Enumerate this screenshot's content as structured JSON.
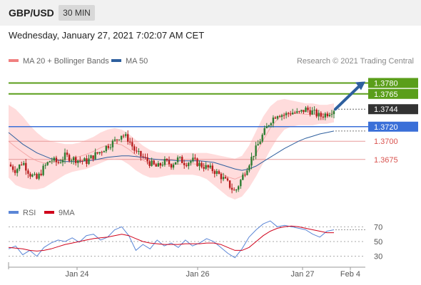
{
  "header": {
    "symbol": "GBP/USD",
    "timeframe": "30 MIN"
  },
  "datetime": "Wednesday, January 27, 2021 7:02:07 AM CET",
  "legend": {
    "bollinger": {
      "label": "MA 20 + Bollinger Bands",
      "color": "#f08080"
    },
    "ma50": {
      "label": "MA 50",
      "color": "#2e5f9e"
    }
  },
  "credit": "Research © 2021 Trading Central",
  "colors": {
    "up": "#2e7d32",
    "down": "#b71c1c",
    "band_fill": "#ffd6d6",
    "target": "#5a9e1a",
    "pivot": "#3a6fd8",
    "support": "#d9534f",
    "last": "#333333",
    "arrow": "#2e5f9e"
  },
  "chart_data": [
    {
      "type": "candlestick",
      "title": "GBP/USD",
      "y_range": [
        1.362,
        1.38
      ],
      "levels": [
        {
          "value": 1.378,
          "label": "1.3780",
          "kind": "target"
        },
        {
          "value": 1.3765,
          "label": "1.3765",
          "kind": "target"
        },
        {
          "value": 1.3744,
          "label": "1.3744",
          "kind": "last"
        },
        {
          "value": 1.372,
          "label": "1.3720",
          "kind": "pivot"
        },
        {
          "value": 1.37,
          "label": "1.3700",
          "kind": "support"
        },
        {
          "value": 1.3675,
          "label": "1.3675",
          "kind": "support"
        }
      ],
      "x_tick_labels": [
        "Jan 24",
        "Jan 26",
        "Jan 27",
        "Feb 4"
      ],
      "price_path": [
        1.3668,
        1.366,
        1.3672,
        1.3655,
        1.3648,
        1.3664,
        1.3675,
        1.367,
        1.368,
        1.3676,
        1.3674,
        1.3672,
        1.368,
        1.3686,
        1.3694,
        1.37,
        1.371,
        1.3702,
        1.3684,
        1.3678,
        1.367,
        1.3664,
        1.3672,
        1.3668,
        1.3676,
        1.367,
        1.3674,
        1.3668,
        1.3664,
        1.366,
        1.3652,
        1.3642,
        1.363,
        1.365,
        1.367,
        1.369,
        1.371,
        1.3728,
        1.3738,
        1.3736,
        1.374,
        1.3738,
        1.3744,
        1.374,
        1.3734,
        1.3738,
        1.3744
      ],
      "ma50_path": [
        1.3712,
        1.3704,
        1.3696,
        1.369,
        1.3684,
        1.368,
        1.3676,
        1.3674,
        1.3672,
        1.3672,
        1.3672,
        1.3673,
        1.3674,
        1.3676,
        1.3678,
        1.3679,
        1.368,
        1.368,
        1.3679,
        1.3678,
        1.3676,
        1.3675,
        1.3674,
        1.3674,
        1.3673,
        1.3673,
        1.3673,
        1.3673,
        1.3672,
        1.3671,
        1.3668,
        1.3665,
        1.3662,
        1.366,
        1.3662,
        1.3666,
        1.3672,
        1.3678,
        1.3684,
        1.369,
        1.3695,
        1.37,
        1.3704,
        1.3707,
        1.371,
        1.3712,
        1.3714
      ],
      "band_upper": [
        1.375,
        1.3744,
        1.3734,
        1.3722,
        1.3712,
        1.3704,
        1.37,
        1.3698,
        1.3696,
        1.3696,
        1.3698,
        1.3702,
        1.3706,
        1.3712,
        1.3716,
        1.3718,
        1.3716,
        1.371,
        1.3702,
        1.3694,
        1.3688,
        1.3685,
        1.3684,
        1.3684,
        1.3683,
        1.3684,
        1.3684,
        1.3684,
        1.3684,
        1.3682,
        1.368,
        1.3678,
        1.3676,
        1.368,
        1.3694,
        1.3714,
        1.3734,
        1.3748,
        1.3756,
        1.3758,
        1.3756,
        1.3754,
        1.3752,
        1.3752,
        1.375,
        1.375,
        1.3752
      ],
      "band_lower": [
        1.365,
        1.364,
        1.3636,
        1.3634,
        1.3634,
        1.3636,
        1.3642,
        1.3648,
        1.3654,
        1.3658,
        1.366,
        1.3662,
        1.3666,
        1.367,
        1.3674,
        1.3676,
        1.3674,
        1.3668,
        1.366,
        1.3654,
        1.365,
        1.365,
        1.3652,
        1.3654,
        1.3654,
        1.3654,
        1.3654,
        1.3652,
        1.3648,
        1.364,
        1.3632,
        1.3624,
        1.362,
        1.3624,
        1.3636,
        1.3652,
        1.367,
        1.3688,
        1.3704,
        1.3716,
        1.372,
        1.3722,
        1.3722,
        1.3722,
        1.3724,
        1.3724,
        1.3726
      ]
    },
    {
      "type": "line",
      "title": "",
      "legend": [
        {
          "name": "RSI",
          "color": "#5b86d6"
        },
        {
          "name": "9MA",
          "color": "#d0021b"
        }
      ],
      "y_ticks": [
        70,
        50,
        30
      ],
      "y_range": [
        20,
        80
      ],
      "series": [
        {
          "name": "RSI",
          "values": [
            40,
            44,
            32,
            38,
            30,
            42,
            48,
            52,
            50,
            55,
            49,
            58,
            60,
            52,
            56,
            66,
            70,
            58,
            38,
            46,
            40,
            52,
            44,
            48,
            42,
            52,
            44,
            48,
            54,
            50,
            42,
            34,
            28,
            40,
            56,
            66,
            74,
            78,
            70,
            72,
            70,
            68,
            66,
            60,
            56,
            64,
            66
          ]
        },
        {
          "name": "9MA",
          "values": [
            42,
            41,
            40,
            38,
            37,
            38,
            40,
            43,
            46,
            48,
            50,
            52,
            54,
            55,
            56,
            58,
            60,
            58,
            54,
            50,
            48,
            47,
            46,
            46,
            46,
            47,
            47,
            47,
            48,
            48,
            46,
            42,
            38,
            38,
            42,
            50,
            58,
            64,
            68,
            70,
            71,
            70,
            68,
            66,
            64,
            62,
            62
          ]
        }
      ],
      "x_tick_labels": [
        "Jan 24",
        "Jan 26",
        "Jan 27",
        "Feb 4"
      ]
    }
  ]
}
